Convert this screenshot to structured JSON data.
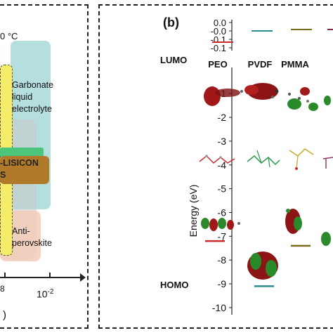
{
  "panel_a": {
    "temperature_label": "0 °C",
    "carbonate_label_line1": "Garbonate",
    "carbonate_label_line2": "liquid",
    "carbonate_label_line3": "electrolyte",
    "lisicon_label": "-LISICON",
    "lisicon_label2": "S",
    "antiperovskite_line1": "Anti-",
    "antiperovskite_line2": "perovskite",
    "xtick_left": "8",
    "xtick_right": "10",
    "xtick_right_exp": "-2",
    "axis_close": ")",
    "colors": {
      "carbonate_fill": "#a8d8d8",
      "yellow_fill": "#f5ec6a",
      "green_band": "#4cc47a",
      "brown_band": "#b07a2a",
      "peach_fill": "#f5cdb8",
      "gray_fill": "#c9c9c9"
    }
  },
  "panel_b": {
    "panel_label": "(b)",
    "lumo_label": "LUMO",
    "homo_label": "HOMO",
    "ylabel": "Energy (eV)",
    "legend_ticks": [
      "0.0",
      "-0.0",
      "-0.1",
      "-0.1"
    ],
    "columns": [
      {
        "name": "PEO",
        "color": "#cc2a2a"
      },
      {
        "name": "PVDF",
        "color": "#2a8c8c"
      },
      {
        "name": "PMMA",
        "color": "#7a6a1a"
      },
      {
        "name": "",
        "color": "#7a2a4a"
      }
    ],
    "yticks": [
      "-1",
      "-2",
      "-3",
      "-4",
      "-5",
      "-6",
      "-7",
      "-8",
      "-9",
      "-10"
    ],
    "chart_data": {
      "type": "scatter",
      "ylabel": "Energy (eV)",
      "ylim": [
        -10.3,
        0.1
      ],
      "series": [
        {
          "name": "PEO",
          "lumo": null,
          "homo": -7.2
        },
        {
          "name": "PVDF",
          "lumo": null,
          "homo": -9.1
        },
        {
          "name": "PMMA",
          "lumo": null,
          "homo": -7.4
        }
      ]
    }
  }
}
